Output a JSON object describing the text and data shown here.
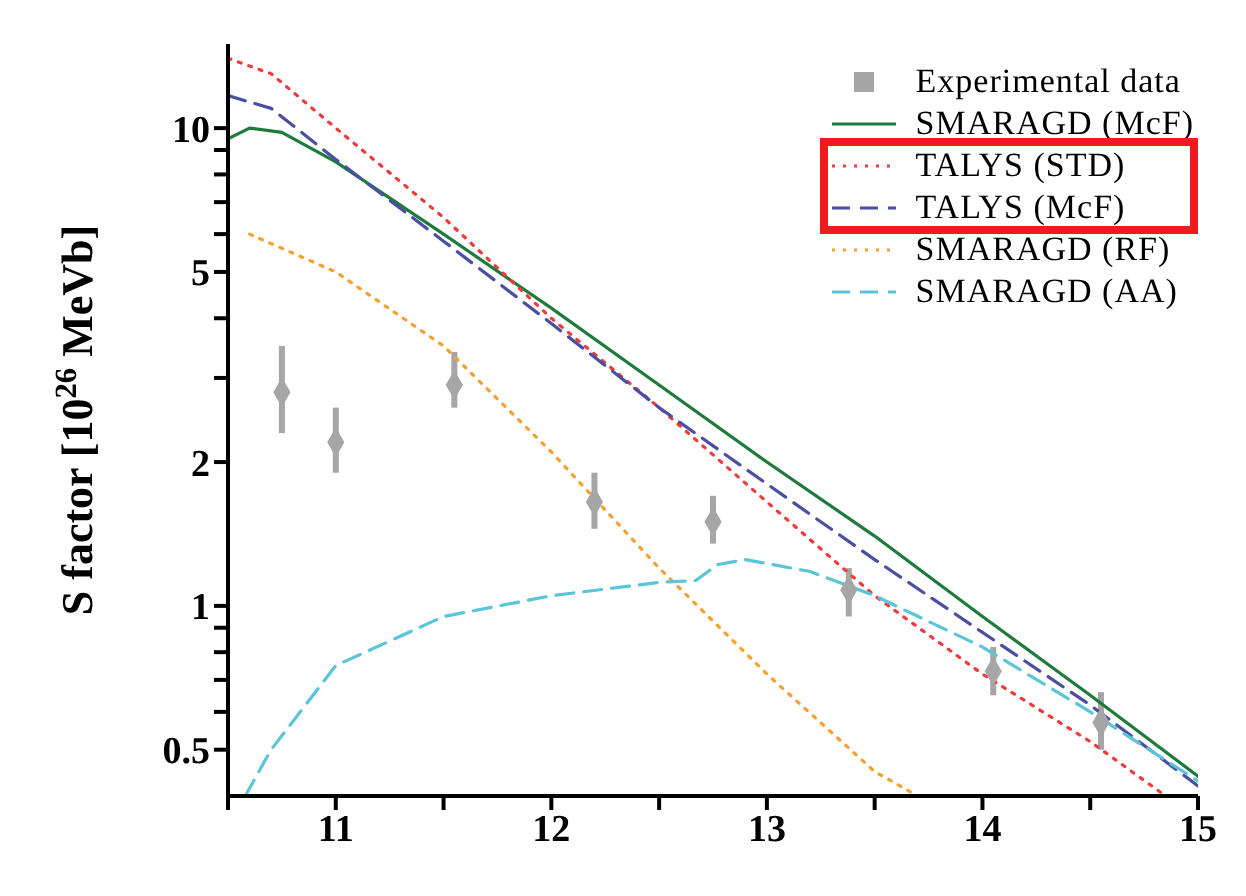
{
  "chart_data": {
    "type": "line",
    "xlabel": null,
    "ylabel": "S factor [10$^{26}$ MeVb]",
    "log": "y",
    "xlim": [
      10.5,
      15
    ],
    "xticks": [
      {
        "value": 10.5,
        "label": null
      },
      11,
      {
        "value": 11.5,
        "label": null
      },
      12,
      {
        "value": 12.5,
        "label": null
      },
      13,
      {
        "value": 13.5,
        "label": null
      },
      14,
      {
        "value": 14.5,
        "label": null
      },
      15
    ],
    "ylim": [
      0.4,
      15
    ],
    "yticks": [
      0.5,
      {
        "value": 0.6,
        "label": null
      },
      {
        "value": 0.7,
        "label": null
      },
      {
        "value": 0.8,
        "label": null
      },
      {
        "value": 0.9,
        "label": null
      },
      1,
      2,
      {
        "value": 3,
        "label": null
      },
      {
        "value": 4,
        "label": null
      },
      5,
      {
        "value": 6,
        "label": null
      },
      {
        "value": 7,
        "label": null
      },
      {
        "value": 8,
        "label": null
      },
      {
        "value": 9,
        "label": null
      },
      10
    ],
    "grid": false,
    "legend": "top right",
    "series": [
      {
        "name": "Experimental data",
        "type": "scatter",
        "marker": "diamond",
        "color": "#a6a6a6",
        "x": [
          10.75,
          11,
          11.55,
          12.2,
          12.75,
          13.38,
          14.05,
          14.55
        ],
        "values": [
          2.8,
          2.2,
          2.9,
          1.65,
          1.5,
          1.08,
          0.73,
          0.57
        ],
        "errors": [
          [
            2.3,
            3.5
          ],
          [
            1.9,
            2.6
          ],
          [
            2.6,
            3.4
          ],
          [
            1.45,
            1.9
          ],
          [
            1.35,
            1.7
          ],
          [
            0.95,
            1.2
          ],
          [
            0.65,
            0.82
          ],
          [
            0.5,
            0.66
          ]
        ]
      },
      {
        "name": "SMARAGD (McF)",
        "color": "#1e7b3c",
        "line_style": "solid",
        "x": [
          10.5,
          10.6,
          10.75,
          11,
          11.5,
          12,
          12.5,
          13,
          13.5,
          14,
          14.5,
          15
        ],
        "values": [
          9.5,
          10,
          9.8,
          8.5,
          6,
          4.2,
          2.9,
          2,
          1.4,
          0.95,
          0.65,
          0.44
        ]
      },
      {
        "name": "TALYS (STD)",
        "color": "#ee3b3b",
        "line_style": "dotted",
        "x": [
          10.5,
          10.7,
          11,
          11.5,
          12,
          12.5,
          13,
          13.5,
          14,
          14.5,
          14.85
        ],
        "values": [
          14,
          13,
          10,
          6.5,
          4,
          2.6,
          1.65,
          1.05,
          0.72,
          0.52,
          0.4
        ]
      },
      {
        "name": "TALYS (McF)",
        "color": "#4a4fa3",
        "line_style": "dashed",
        "x": [
          10.5,
          10.7,
          11,
          11.5,
          12,
          12.5,
          13,
          13.5,
          14,
          14.5,
          15
        ],
        "values": [
          11.7,
          11,
          8.6,
          5.8,
          3.9,
          2.6,
          1.8,
          1.25,
          0.88,
          0.62,
          0.42
        ]
      },
      {
        "name": "SMARAGD (RF)",
        "color": "#f5a030",
        "line_style": "dotted",
        "x": [
          10.6,
          11,
          11.5,
          12,
          12.5,
          13,
          13.5,
          13.7
        ],
        "values": [
          6,
          5,
          3.5,
          2.1,
          1.2,
          0.72,
          0.45,
          0.4
        ]
      },
      {
        "name": "SMARAGD (AA)",
        "color": "#5bc5d8",
        "line_style": "dashed",
        "x": [
          10.58,
          10.7,
          11,
          11.5,
          12,
          12.5,
          12.67,
          12.77,
          12.9,
          13.2,
          13.5,
          14,
          14.5,
          15
        ],
        "values": [
          0.4,
          0.5,
          0.75,
          0.95,
          1.05,
          1.12,
          1.13,
          1.22,
          1.25,
          1.18,
          1.05,
          0.82,
          0.6,
          0.43
        ]
      }
    ]
  }
}
